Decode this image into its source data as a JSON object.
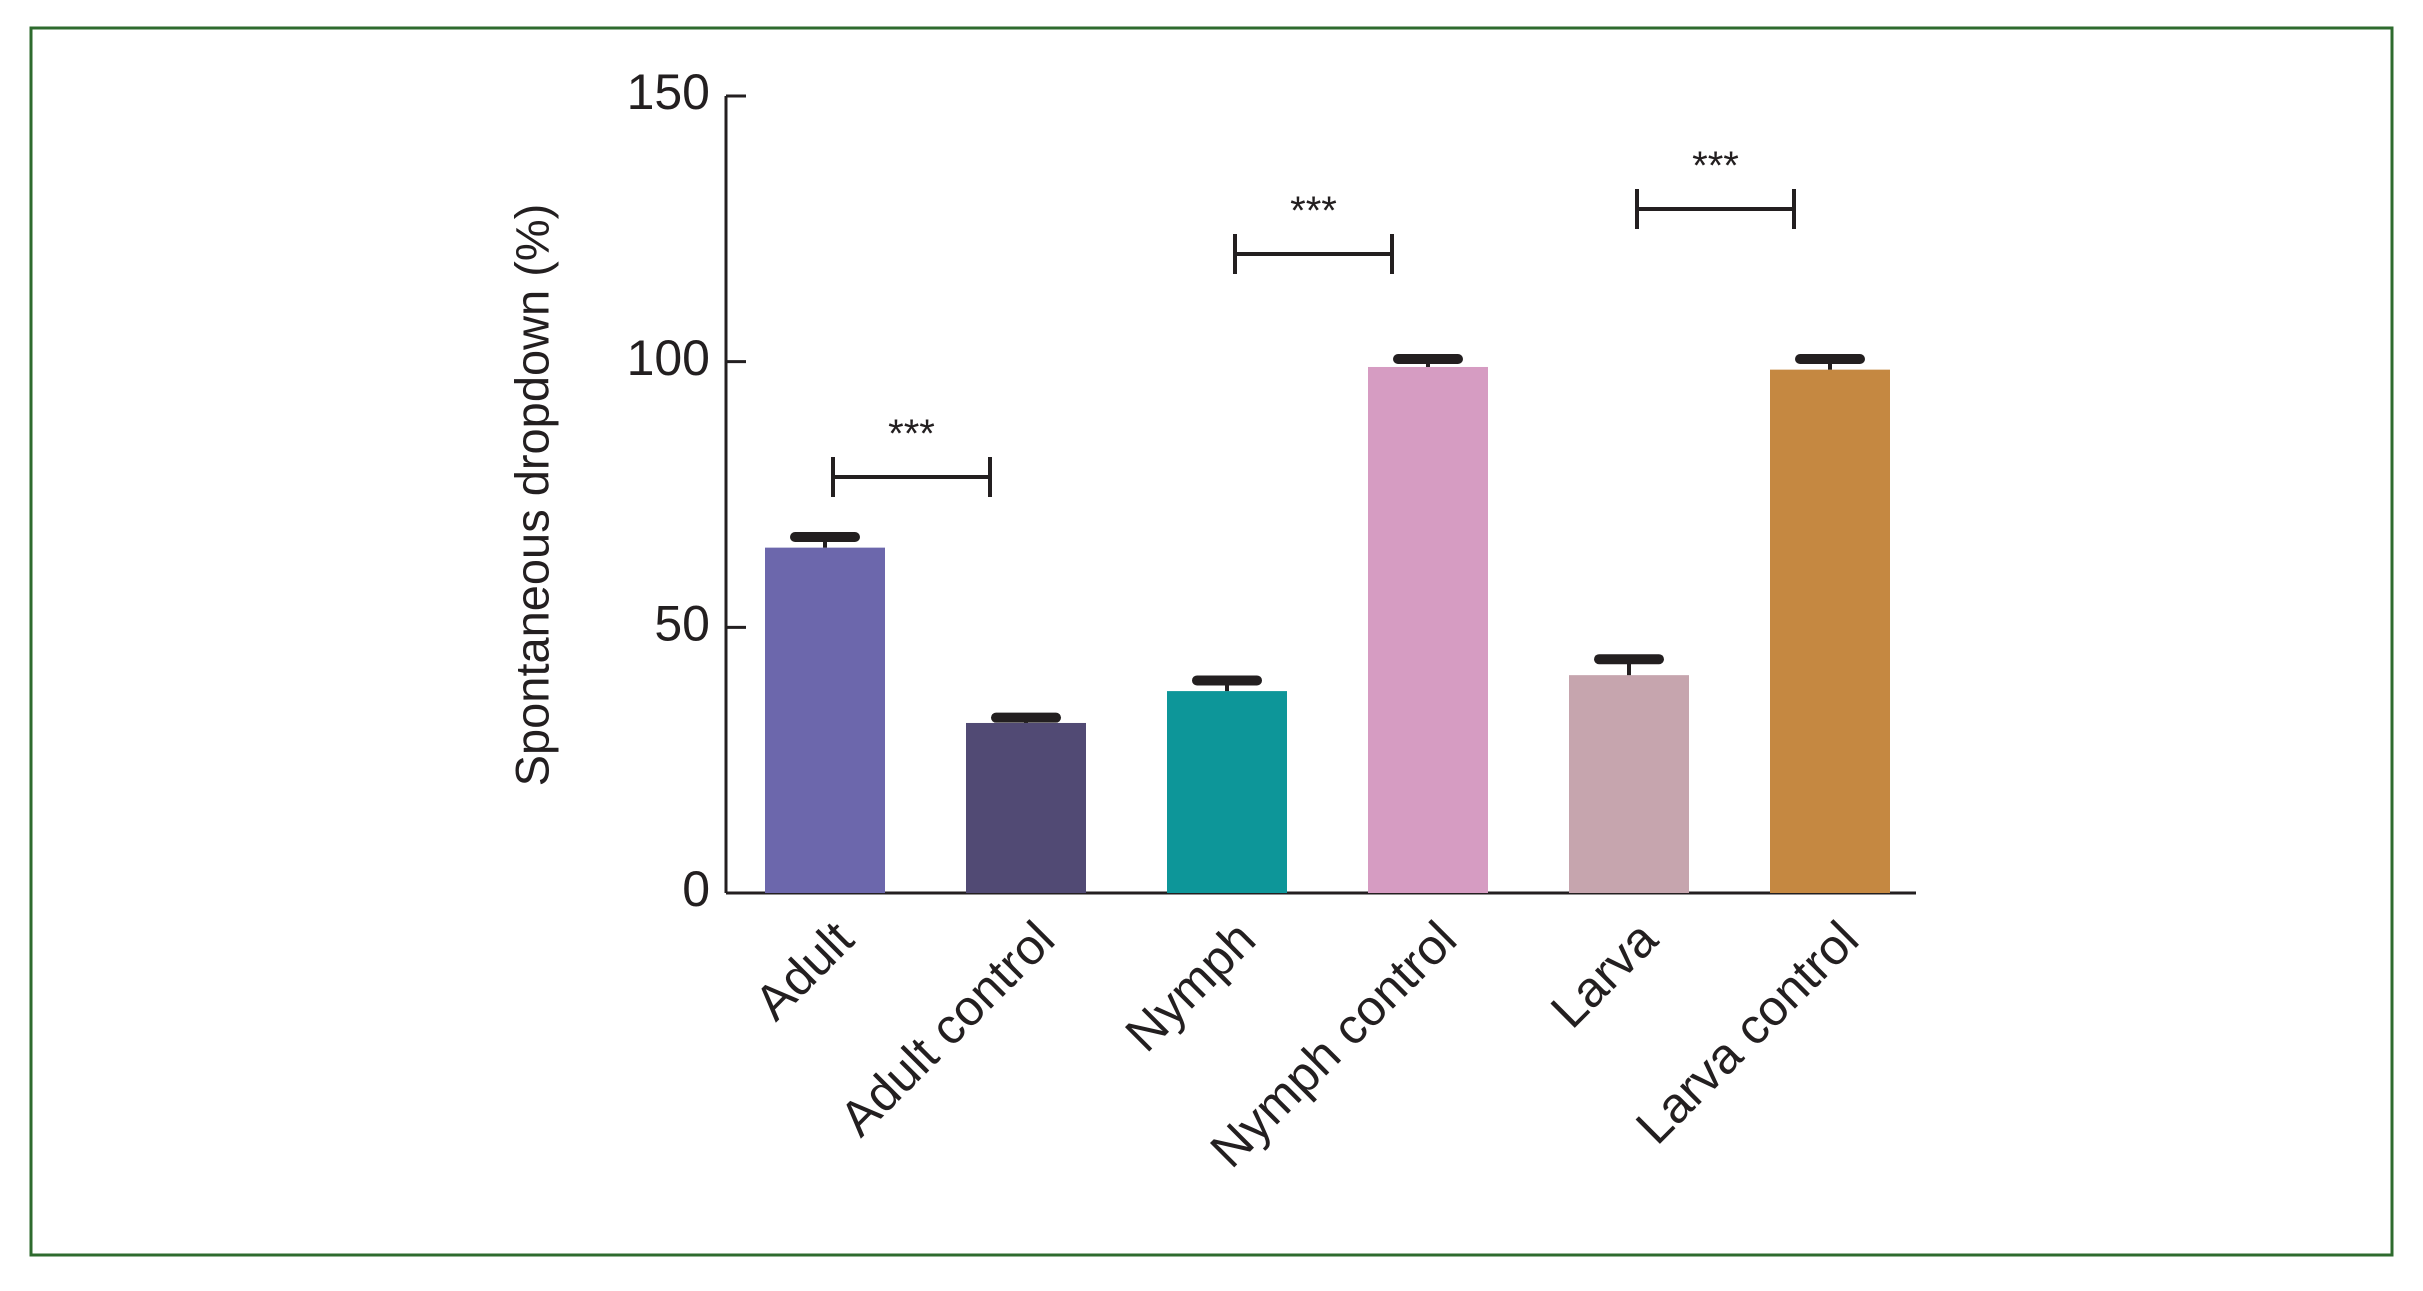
{
  "chart_data": {
    "type": "bar",
    "y_label": "Spontaneous dropdown (%)",
    "categories": [
      "Adult",
      "Adult control",
      "Nymph",
      "Nymph control",
      "Larva",
      "Larva control"
    ],
    "values": [
      65,
      32,
      38,
      99,
      41,
      98.5
    ],
    "errors": [
      2,
      1,
      2,
      1.5,
      3,
      2
    ],
    "colors": [
      "#6c67ac",
      "#514a74",
      "#0d9699",
      "#d69cc2",
      "#c6a5ae",
      "#c58841"
    ],
    "ylim": [
      0,
      150
    ],
    "yticks": [
      0,
      50,
      100,
      150
    ],
    "annotations": [
      {
        "text": "***",
        "from": 0,
        "to": 1
      },
      {
        "text": "***",
        "from": 2,
        "to": 3
      },
      {
        "text": "***",
        "from": 4,
        "to": 5
      }
    ]
  }
}
